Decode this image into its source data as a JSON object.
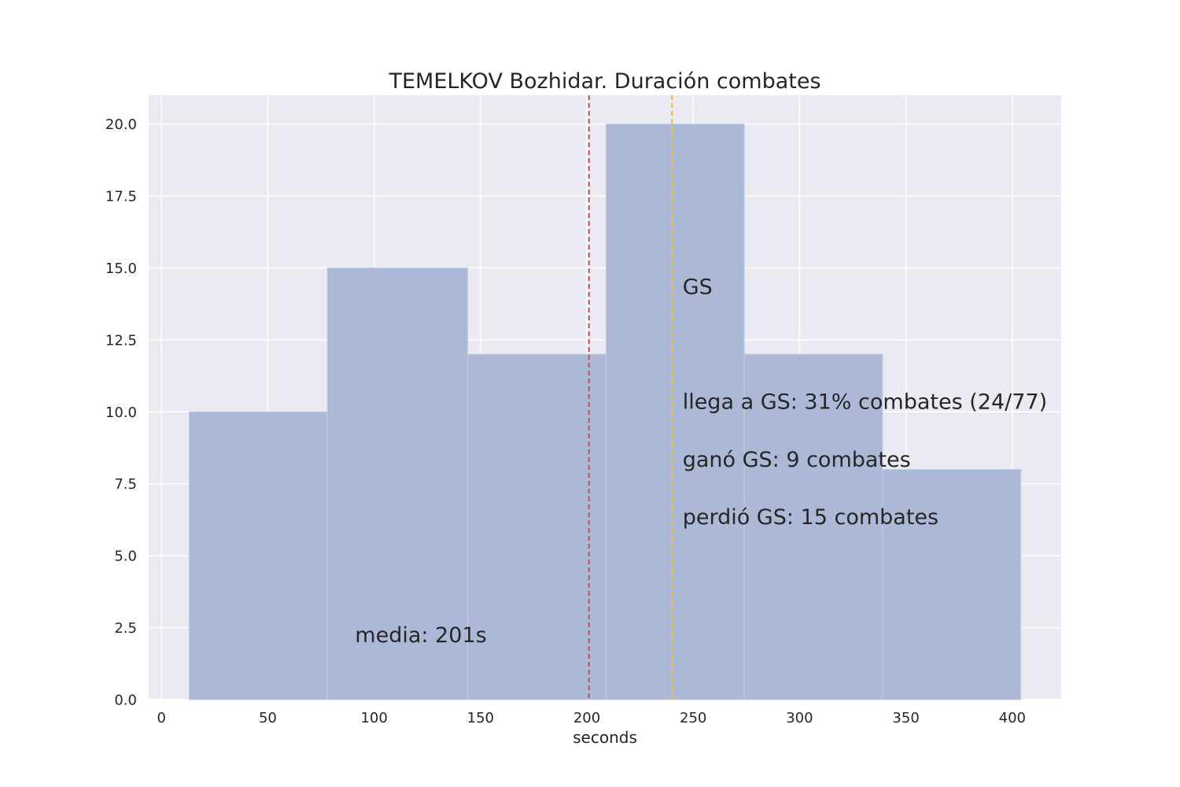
{
  "chart_data": {
    "type": "bar",
    "title": "TEMELKOV Bozhidar. Duración combates",
    "xlabel": "seconds",
    "ylabel": "",
    "xlim": [
      -6,
      423
    ],
    "ylim": [
      0,
      21
    ],
    "grid": true,
    "bins": [
      {
        "x0": 13,
        "x1": 78,
        "value": 10
      },
      {
        "x0": 78,
        "x1": 144,
        "value": 15
      },
      {
        "x0": 144,
        "x1": 209,
        "value": 12
      },
      {
        "x0": 209,
        "x1": 274,
        "value": 20
      },
      {
        "x0": 274,
        "x1": 339,
        "value": 12
      },
      {
        "x0": 339,
        "x1": 404,
        "value": 8
      }
    ],
    "x_ticks": [
      0,
      50,
      100,
      150,
      200,
      250,
      300,
      350,
      400
    ],
    "x_tick_labels": [
      "0",
      "50",
      "100",
      "150",
      "200",
      "250",
      "300",
      "350",
      "400"
    ],
    "y_ticks": [
      0,
      2.5,
      5,
      7.5,
      10,
      12.5,
      15,
      17.5,
      20
    ],
    "y_tick_labels": [
      "0.0",
      "2.5",
      "5.0",
      "7.5",
      "10.0",
      "12.5",
      "15.0",
      "17.5",
      "20.0"
    ],
    "vlines": [
      {
        "x": 201,
        "color": "#c44e52"
      },
      {
        "x": 240,
        "color": "#f2c12e"
      }
    ],
    "annotations": [
      {
        "text": "media: 201s",
        "x": 91,
        "y": 2.0,
        "color": "#c44e52"
      },
      {
        "text": "GS",
        "x": 245,
        "y": 14.1,
        "color": "#262626"
      },
      {
        "text": "llega a GS: 31% combates (24/77)",
        "x": 245,
        "y": 10.1,
        "color": "#262626"
      },
      {
        "text": "ganó GS: 9 combates",
        "x": 245,
        "y": 8.1,
        "color": "#262626"
      },
      {
        "text": "perdió GS: 15 combates",
        "x": 245,
        "y": 6.1,
        "color": "#262626"
      }
    ],
    "colors": {
      "bar": "#a9b8d6",
      "plot_background": "#eaeaf2",
      "grid": "#ffffff"
    }
  }
}
